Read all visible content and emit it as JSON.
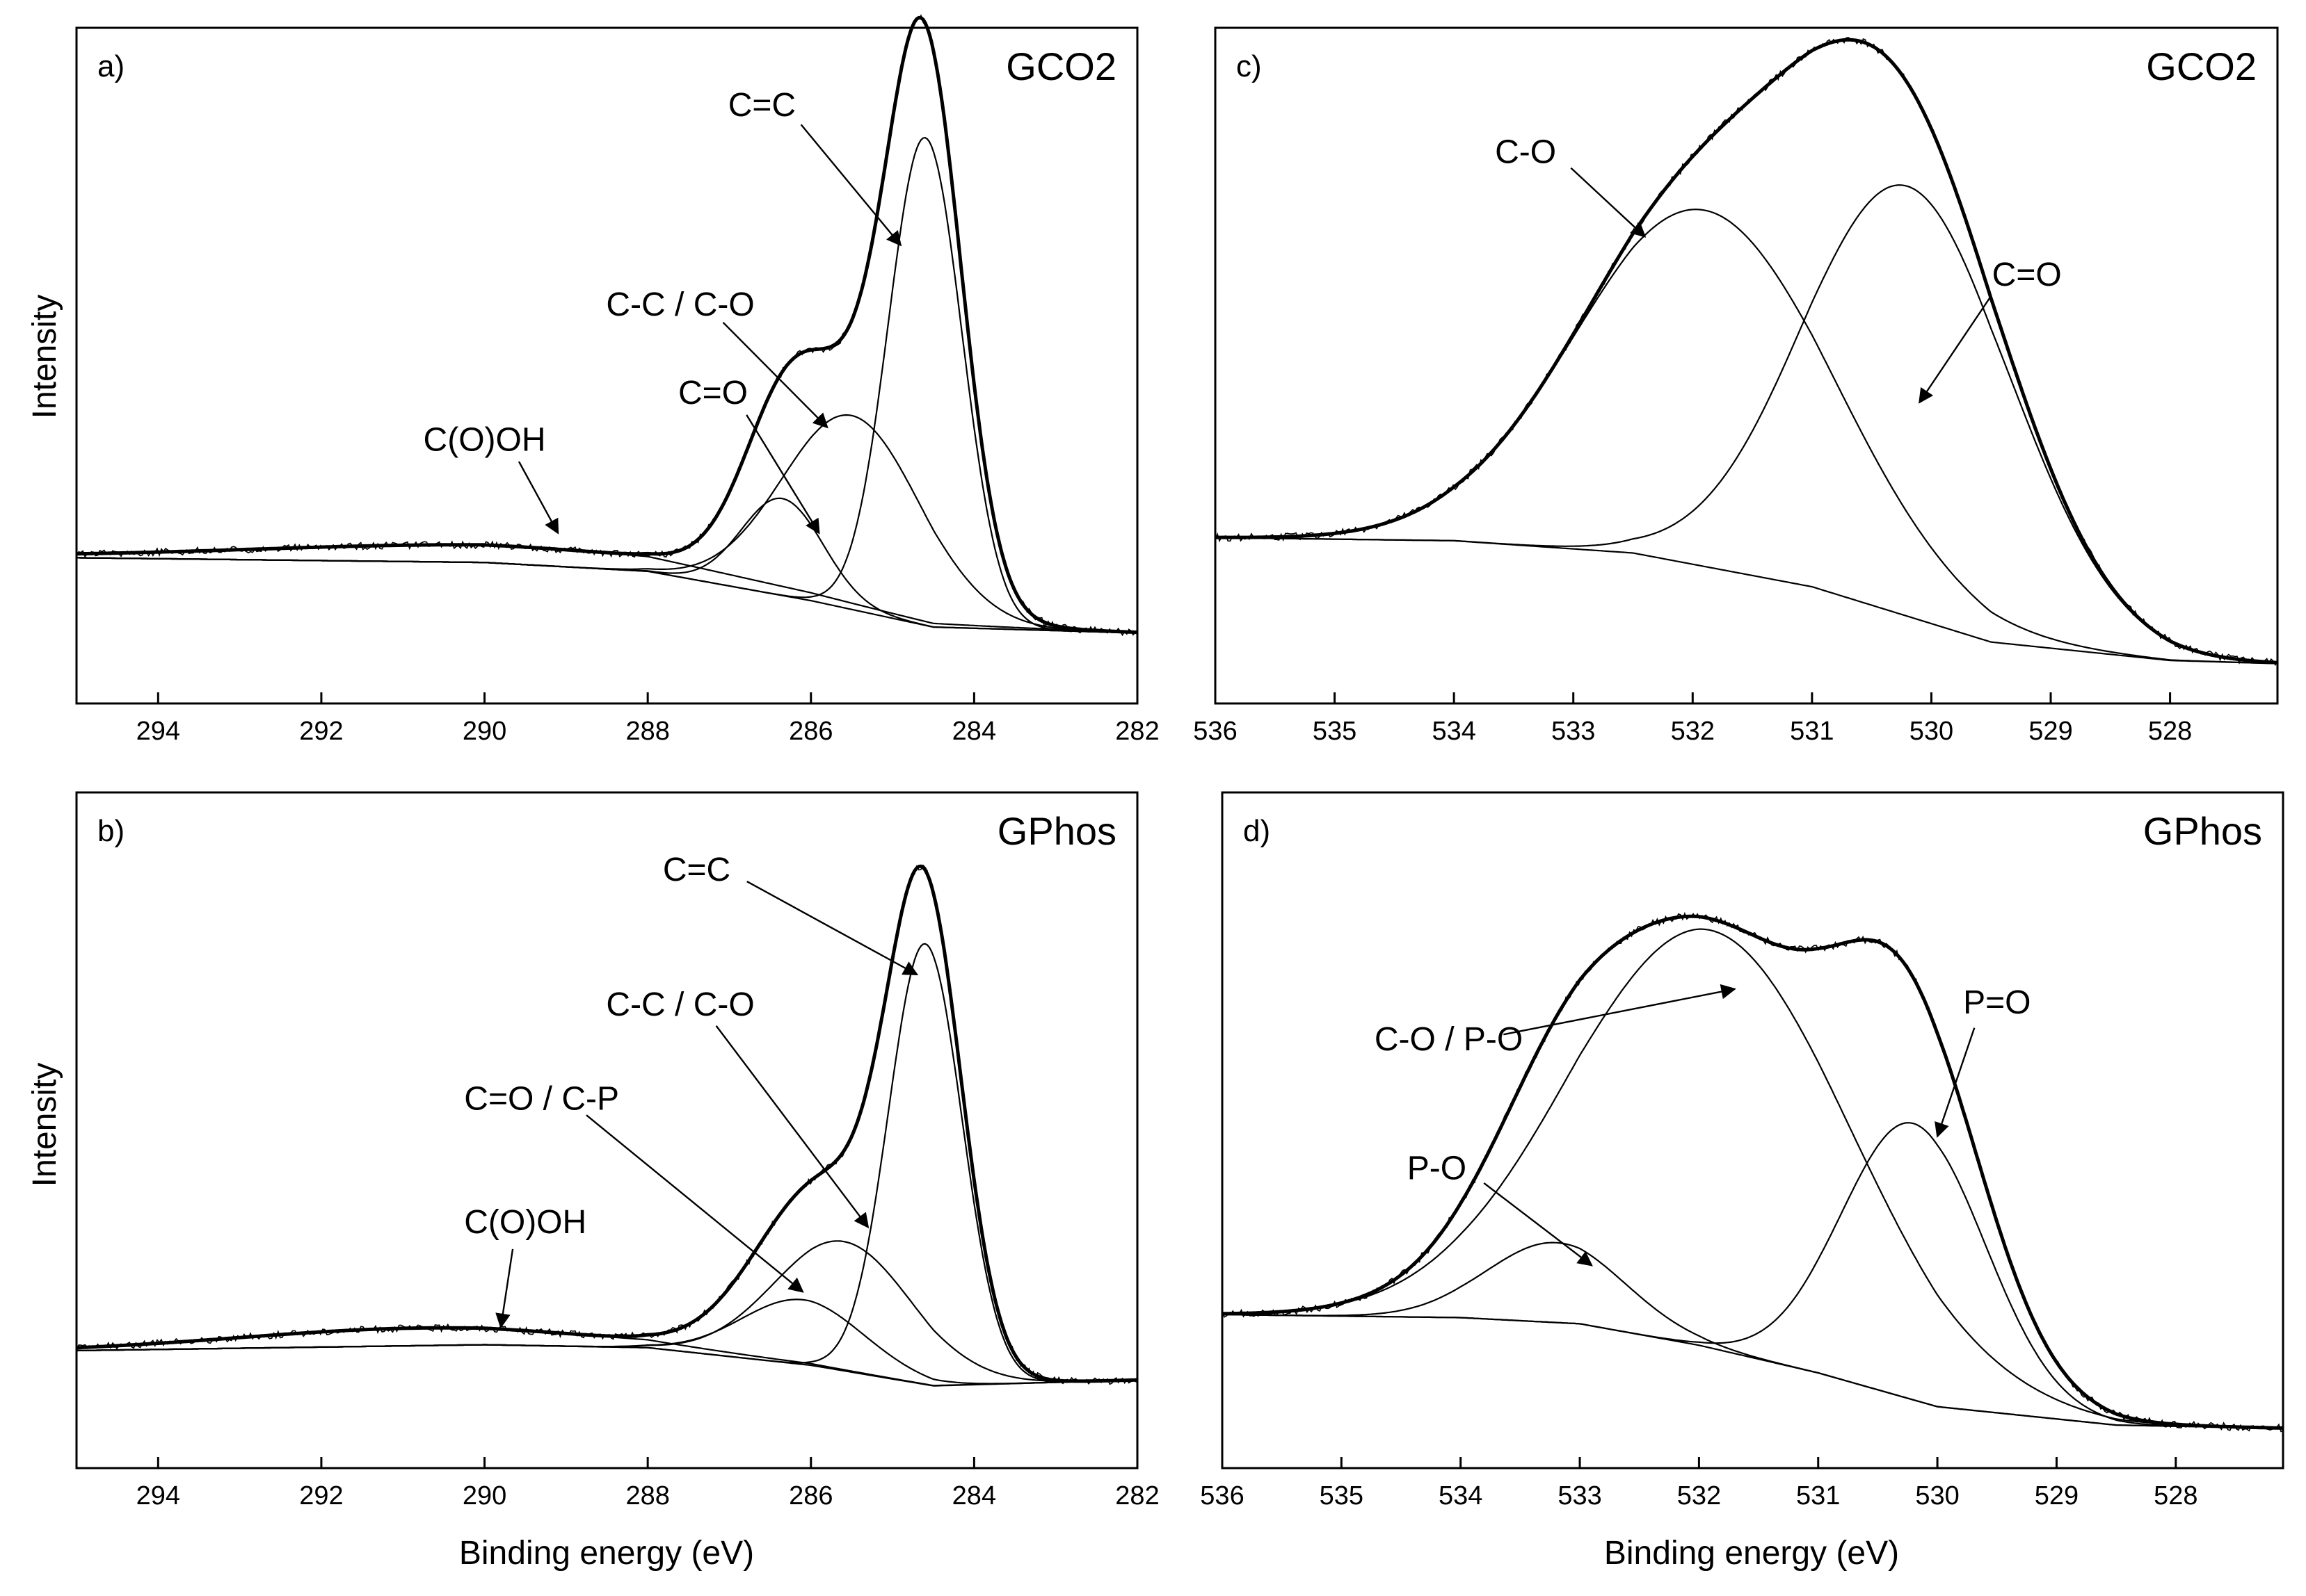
{
  "figure": {
    "x_axis_title": "Binding energy (eV)",
    "y_axis_title": "Intensity"
  },
  "chart_data": [
    {
      "id": "a",
      "panel_label": "a)",
      "sample": "GCO2",
      "type": "line",
      "xlim": [
        295,
        282
      ],
      "xticks": [
        294,
        292,
        290,
        288,
        286,
        284,
        282
      ],
      "ylim": [
        0,
        1.15
      ],
      "xlabel": "",
      "ylabel": "Intensity",
      "background": [
        [
          295,
          0.248
        ],
        [
          290,
          0.24
        ],
        [
          288,
          0.225
        ],
        [
          286,
          0.175
        ],
        [
          284.5,
          0.13
        ],
        [
          282,
          0.12
        ]
      ],
      "peaks": [
        {
          "name": "C=C",
          "center": 284.6,
          "height": 0.83,
          "sigma": 0.45
        },
        {
          "name": "C-C / C-O",
          "center": 285.5,
          "height": 0.33,
          "sigma": 0.85
        },
        {
          "name": "C=O",
          "center": 286.35,
          "height": 0.165,
          "sigma": 0.5
        },
        {
          "name": "C(O)OH",
          "center": 289.8,
          "height": 0.03,
          "sigma": 3.0
        }
      ],
      "annotations": [
        {
          "text": "C=C",
          "tx": 286.6,
          "ty": 1.0,
          "ax": 284.9,
          "ay": 0.78
        },
        {
          "text": "C-C / C-O",
          "tx": 287.6,
          "ty": 0.66,
          "ax": 285.8,
          "ay": 0.47
        },
        {
          "text": "C=O",
          "tx": 287.2,
          "ty": 0.51,
          "ax": 285.9,
          "ay": 0.29
        },
        {
          "text": "C(O)OH",
          "tx": 290.0,
          "ty": 0.43,
          "ax": 289.1,
          "ay": 0.29
        }
      ]
    },
    {
      "id": "b",
      "panel_label": "b)",
      "sample": "GPhos",
      "type": "line",
      "xlim": [
        295,
        282
      ],
      "xticks": [
        294,
        292,
        290,
        288,
        286,
        284,
        282
      ],
      "ylim": [
        0,
        1.15
      ],
      "xlabel": "Binding energy (eV)",
      "ylabel": "Intensity",
      "background": [
        [
          295,
          0.2
        ],
        [
          290,
          0.21
        ],
        [
          288,
          0.205
        ],
        [
          286,
          0.175
        ],
        [
          284.5,
          0.14
        ],
        [
          282,
          0.15
        ]
      ],
      "peaks": [
        {
          "name": "C=C",
          "center": 284.6,
          "height": 0.75,
          "sigma": 0.45
        },
        {
          "name": "C-C / C-O",
          "center": 285.6,
          "height": 0.22,
          "sigma": 0.85
        },
        {
          "name": "C=O / C-P",
          "center": 286.1,
          "height": 0.11,
          "sigma": 0.75
        },
        {
          "name": "C(O)OH",
          "center": 290.8,
          "height": 0.03,
          "sigma": 2.2
        }
      ],
      "annotations": [
        {
          "text": "C=C",
          "tx": 287.4,
          "ty": 1.0,
          "ax": 284.7,
          "ay": 0.84
        },
        {
          "text": "C-C / C-O",
          "tx": 287.6,
          "ty": 0.77,
          "ax": 285.3,
          "ay": 0.41
        },
        {
          "text": "C=O / C-P",
          "tx": 289.3,
          "ty": 0.61,
          "ax": 286.1,
          "ay": 0.3
        },
        {
          "text": "C(O)OH",
          "tx": 289.5,
          "ty": 0.4,
          "ax": 289.8,
          "ay": 0.24
        }
      ]
    },
    {
      "id": "c",
      "panel_label": "c)",
      "sample": "GCO2",
      "type": "line",
      "xlim": [
        536,
        527.1
      ],
      "xticks": [
        536,
        535,
        534,
        533,
        532,
        531,
        530,
        529,
        528
      ],
      "ylim": [
        0,
        1.1
      ],
      "xlabel": "",
      "ylabel": "",
      "background": [
        [
          536,
          0.27
        ],
        [
          534,
          0.265
        ],
        [
          532.5,
          0.245
        ],
        [
          531,
          0.19
        ],
        [
          529.5,
          0.1
        ],
        [
          528,
          0.07
        ],
        [
          527.1,
          0.065
        ]
      ],
      "peaks": [
        {
          "name": "C-O",
          "center": 531.9,
          "height": 0.58,
          "sigma": 1.08
        },
        {
          "name": "C=O",
          "center": 530.2,
          "height": 0.7,
          "sigma": 0.88
        }
      ],
      "annotations": [
        {
          "text": "C-O",
          "tx": 533.4,
          "ty": 0.88,
          "ax": 532.4,
          "ay": 0.76
        },
        {
          "text": "C=O",
          "tx": 529.2,
          "ty": 0.68,
          "ax": 530.1,
          "ay": 0.49
        }
      ]
    },
    {
      "id": "d",
      "panel_label": "d)",
      "sample": "GPhos",
      "type": "line",
      "xlim": [
        536,
        527.1
      ],
      "xticks": [
        536,
        535,
        534,
        533,
        532,
        531,
        530,
        529,
        528
      ],
      "ylim": [
        0,
        1.1
      ],
      "xlabel": "Binding energy (eV)",
      "ylabel": "",
      "background": [
        [
          536,
          0.25
        ],
        [
          534,
          0.245
        ],
        [
          533,
          0.235
        ],
        [
          532,
          0.2
        ],
        [
          531,
          0.155
        ],
        [
          530,
          0.1
        ],
        [
          528.5,
          0.07
        ],
        [
          527.1,
          0.065
        ]
      ],
      "peaks": [
        {
          "name": "C-O / P-O",
          "center": 531.9,
          "height": 0.68,
          "sigma": 1.17
        },
        {
          "name": "P=O",
          "center": 530.2,
          "height": 0.45,
          "sigma": 0.6
        },
        {
          "name": "P-O",
          "center": 533.2,
          "height": 0.13,
          "sigma": 0.58
        }
      ],
      "annotations": [
        {
          "text": "C-O / P-O",
          "tx": 534.1,
          "ty": 0.68,
          "ax": 531.7,
          "ay": 0.78
        },
        {
          "text": "P=O",
          "tx": 529.5,
          "ty": 0.74,
          "ax": 530.0,
          "ay": 0.54
        },
        {
          "text": "P-O",
          "tx": 534.2,
          "ty": 0.47,
          "ax": 532.9,
          "ay": 0.33
        }
      ]
    }
  ]
}
